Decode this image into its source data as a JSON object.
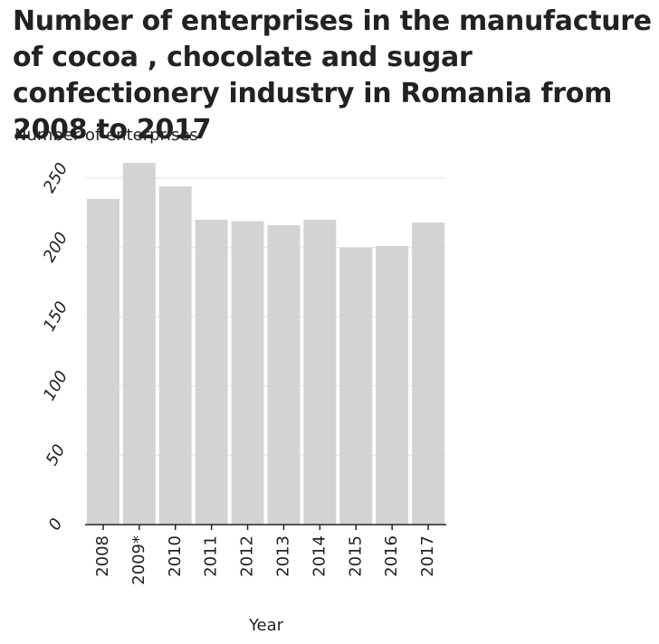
{
  "chart_data": {
    "type": "bar",
    "title": "Number of enterprises in the manufacture of cocoa , chocolate and sugar confectionery industry in Romania from 2008 to 2017",
    "xlabel": "Year",
    "ylabel": "Number of enterprises",
    "categories": [
      "2008",
      "2009*",
      "2010",
      "2011",
      "2012",
      "2013",
      "2014",
      "2015",
      "2016",
      "2017"
    ],
    "values": [
      235,
      261,
      244,
      220,
      219,
      216,
      220,
      200,
      201,
      218
    ],
    "ylim": [
      0,
      250
    ],
    "yticks": [
      "0",
      "50",
      "100",
      "150",
      "200",
      "250"
    ],
    "grid": true,
    "legend": "none",
    "colors": {
      "bar": "#d3d3d3",
      "grid": "#e6e6e6",
      "axis": "#222222",
      "text": "#222222"
    }
  }
}
